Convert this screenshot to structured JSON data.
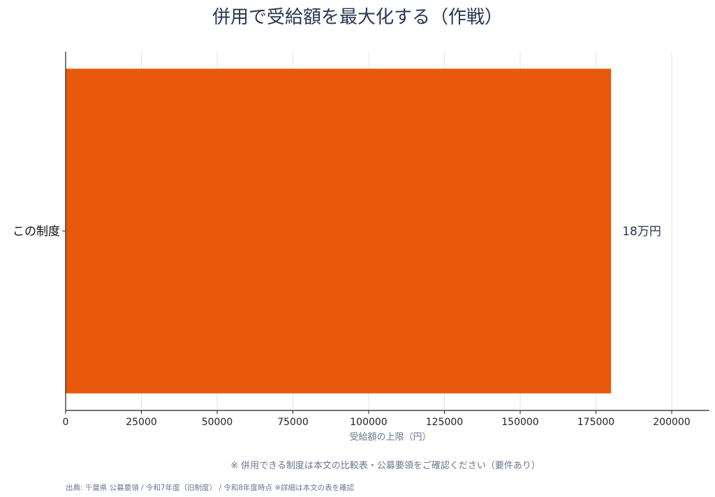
{
  "chart_data": {
    "type": "bar",
    "orientation": "horizontal",
    "title": "併用で受給額を最大化する（作戦）",
    "categories": [
      "この制度"
    ],
    "values": [
      180000
    ],
    "data_labels": [
      "18万円"
    ],
    "xlabel": "受給額の上限（円）",
    "xlim": [
      0,
      200000
    ],
    "xticks": [
      0,
      25000,
      50000,
      75000,
      100000,
      125000,
      150000,
      175000,
      200000
    ],
    "bar_color": "#e8590c",
    "grid": "vertical",
    "legend": "none"
  },
  "note": "※ 併用できる制度は本文の比較表・公募要領をご確認ください（要件あり）",
  "source": "出典: 千葉県 公募要領 / 令和7年度（旧制度） / 令和8年度時点 ※詳細は本文の表を確認"
}
